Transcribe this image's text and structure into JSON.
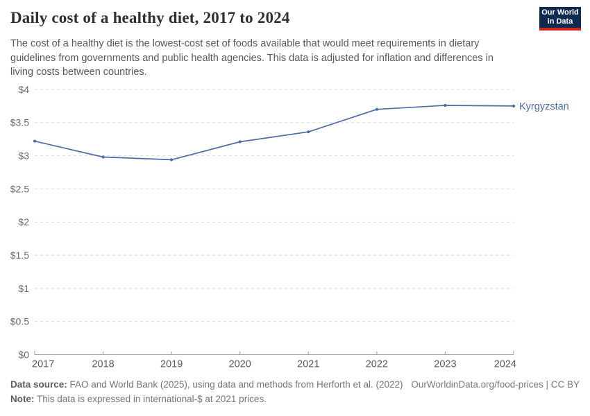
{
  "header": {
    "title": "Daily cost of a healthy diet, 2017 to 2024",
    "logo": {
      "line1": "Our World",
      "line2": "in Data",
      "bg_color": "#0e2a52",
      "stripe_color": "#ce261f"
    }
  },
  "subtitle": "The cost of a healthy diet is the lowest-cost set of foods available that would meet requirements in dietary guidelines from governments and public health agencies. This data is adjusted for inflation and differences in living costs between countries.",
  "chart_data": {
    "type": "line",
    "title": "Daily cost of a healthy diet, 2017 to 2024",
    "x": [
      2017,
      2018,
      2019,
      2020,
      2021,
      2022,
      2023,
      2024
    ],
    "series": [
      {
        "name": "Kyrgyzstan",
        "values": [
          3.22,
          2.98,
          2.94,
          3.21,
          3.36,
          3.7,
          3.76,
          3.75
        ],
        "color": "#4c6ba5"
      }
    ],
    "ylim": [
      0,
      4
    ],
    "yticks": [
      0,
      0.5,
      1,
      1.5,
      2,
      2.5,
      3,
      3.5,
      4
    ],
    "ytick_prefix": "$",
    "xlabel": "",
    "ylabel": "",
    "grid": "horizontal-dashed",
    "legend": "end-of-line-label",
    "grid_color": "#d9d9d9",
    "axis_color": "#a3a3a3",
    "ytick_label_color": "#6b6b6b",
    "xtick_label_color": "#56575b"
  },
  "footer": {
    "source_label": "Data source:",
    "source_text": " FAO and World Bank (2025), using data and methods from Herforth et al. (2022)",
    "note_label": "Note:",
    "note_text": " This data is expressed in international-$ at 2021 prices.",
    "credit": "OurWorldinData.org/food-prices | CC BY"
  }
}
